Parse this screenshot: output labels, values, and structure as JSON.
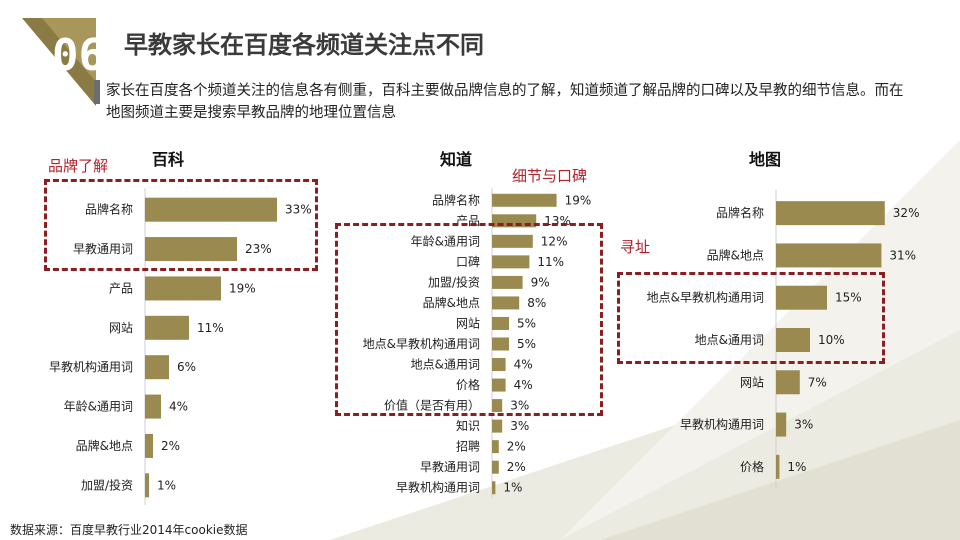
{
  "header": {
    "number": "06",
    "title": "早教家长在百度各频道关注点不同",
    "description": "家长在百度各个频道关注的信息各有侧重，百科主要做品牌信息的了解，知道频道了解品牌的口碑以及早教的细节信息。而在地图频道主要是搜索早教品牌的地理位置信息"
  },
  "callouts": {
    "baike": "品牌了解",
    "zhidao": "细节与口碑",
    "map": "寻址"
  },
  "source": "数据来源：百度早教行业2014年cookie数据",
  "colors": {
    "bar": "#9a8a4f",
    "accent": "#8b1e23",
    "header_block": "#7a6a3a"
  },
  "chart_data": [
    {
      "type": "bar",
      "orientation": "horizontal",
      "title": "百科",
      "categories": [
        "品牌名称",
        "早教通用词",
        "产品",
        "网站",
        "早教机构通用词",
        "年龄&通用词",
        "品牌&地点",
        "加盟/投资"
      ],
      "values": [
        33,
        23,
        19,
        11,
        6,
        4,
        2,
        1
      ],
      "labels": [
        "33%",
        "23%",
        "19%",
        "11%",
        "6%",
        "4%",
        "2%",
        "1%"
      ]
    },
    {
      "type": "bar",
      "orientation": "horizontal",
      "title": "知道",
      "categories": [
        "品牌名称",
        "产品",
        "年龄&通用词",
        "口碑",
        "加盟/投资",
        "品牌&地点",
        "网站",
        "地点&早教机构通用词",
        "地点&通用词",
        "价格",
        "价值（是否有用）",
        "知识",
        "招聘",
        "早教通用词",
        "早教机构通用词"
      ],
      "values": [
        19,
        13,
        12,
        11,
        9,
        8,
        5,
        5,
        4,
        4,
        3,
        3,
        2,
        2,
        1
      ],
      "labels": [
        "19%",
        "13%",
        "12%",
        "11%",
        "9%",
        "8%",
        "5%",
        "5%",
        "4%",
        "4%",
        "3%",
        "3%",
        "2%",
        "2%",
        "1%"
      ]
    },
    {
      "type": "bar",
      "orientation": "horizontal",
      "title": "地图",
      "categories": [
        "品牌名称",
        "品牌&地点",
        "地点&早教机构通用词",
        "地点&通用词",
        "网站",
        "早教机构通用词",
        "价格"
      ],
      "values": [
        32,
        31,
        15,
        10,
        7,
        3,
        1
      ],
      "labels": [
        "32%",
        "31%",
        "15%",
        "10%",
        "7%",
        "3%",
        "1%"
      ]
    }
  ]
}
